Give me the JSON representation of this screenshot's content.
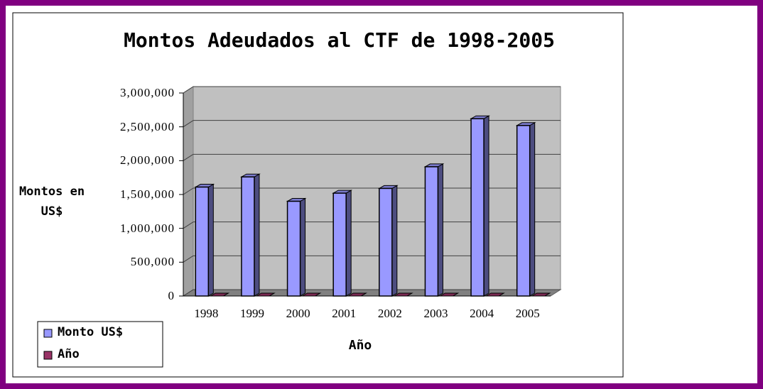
{
  "chart_data": {
    "type": "bar3d",
    "title": "Montos Adeudados al CTF de 1998-2005",
    "y_label": "Montos en US$",
    "x_label": "Año",
    "categories": [
      "1998",
      "1999",
      "2000",
      "2001",
      "2002",
      "2003",
      "2004",
      "2005"
    ],
    "series": [
      {
        "name": "Monto US$",
        "color": "#9999ff",
        "values": [
          1610000,
          1760000,
          1400000,
          1520000,
          1590000,
          1910000,
          2620000,
          2520000
        ]
      },
      {
        "name": "Año",
        "color": "#993366",
        "values": [
          0,
          0,
          0,
          0,
          0,
          0,
          0,
          0
        ]
      }
    ],
    "ylim": [
      0,
      3000000
    ],
    "yticks": [
      0,
      {
        "value": 500000,
        "label": "500,000"
      },
      {
        "value": 1000000,
        "label": "1,000,000"
      },
      {
        "value": 1500000,
        "label": "1,500,000"
      },
      {
        "value": 2000000,
        "label": "2,000,000"
      },
      {
        "value": 2500000,
        "label": "2,500,000"
      },
      {
        "value": 3000000,
        "label": "3,000,000"
      }
    ],
    "grid": true,
    "legend": "bottom-left"
  }
}
